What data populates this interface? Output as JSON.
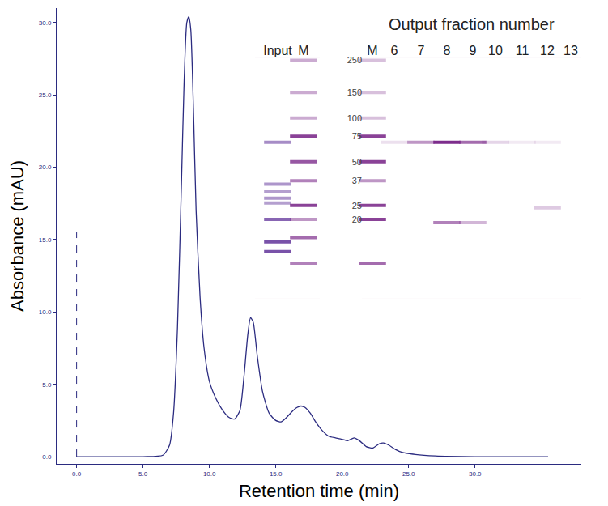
{
  "chart_data": {
    "type": "line",
    "x_label": "Retention time (min)",
    "y_label": "Absorbance (mAU)",
    "color": "#2b2b80",
    "grid": false,
    "xlim": [
      -1.5,
      38
    ],
    "ylim": [
      -0.5,
      31
    ],
    "xticks": [
      {
        "value": 0,
        "label": "0.0"
      },
      {
        "value": 5,
        "label": "5.0"
      },
      {
        "value": 10,
        "label": "10.0"
      },
      {
        "value": 15,
        "label": "15.0"
      },
      {
        "value": 20,
        "label": "20.0"
      },
      {
        "value": 25,
        "label": "25.0"
      },
      {
        "value": 30,
        "label": "30.0"
      }
    ],
    "yticks": [
      {
        "value": 0,
        "label": "0.0"
      },
      {
        "value": 5,
        "label": "5.0"
      },
      {
        "value": 10,
        "label": "10.0"
      },
      {
        "value": 15,
        "label": "15.0"
      },
      {
        "value": 20,
        "label": "20.0"
      },
      {
        "value": 25,
        "label": "25.0"
      },
      {
        "value": 30,
        "label": "30.0"
      }
    ],
    "x": [
      0,
      5,
      6.5,
      7.0,
      7.3,
      7.6,
      7.9,
      8.1,
      8.3,
      8.45,
      8.6,
      8.8,
      9.0,
      9.3,
      9.6,
      10.0,
      10.5,
      11.0,
      11.5,
      11.9,
      12.3,
      12.6,
      12.9,
      13.1,
      13.3,
      13.6,
      14.0,
      14.5,
      15.0,
      15.4,
      15.8,
      16.2,
      16.6,
      16.9,
      17.2,
      17.6,
      18.0,
      18.5,
      19.0,
      19.5,
      20.0,
      20.4,
      20.9,
      21.3,
      21.8,
      22.3,
      22.8,
      23.1,
      23.5,
      24.0,
      24.5,
      25.5,
      27,
      30,
      35.5
    ],
    "values": [
      0,
      0,
      0.1,
      0.8,
      3,
      9,
      19,
      26,
      30,
      30.4,
      29.5,
      24,
      17,
      11,
      7.5,
      5.2,
      4.0,
      3.2,
      2.7,
      2.6,
      3.2,
      5.5,
      8.5,
      9.6,
      9.3,
      7,
      4.5,
      3.0,
      2.5,
      2.4,
      2.7,
      3.1,
      3.4,
      3.5,
      3.4,
      3.0,
      2.4,
      1.8,
      1.4,
      1.3,
      1.2,
      1.1,
      1.3,
      1.1,
      0.7,
      0.6,
      0.9,
      0.95,
      0.8,
      0.5,
      0.3,
      0.15,
      0.05,
      0,
      0
    ],
    "injection": {
      "x": 0,
      "y": [
        0,
        15.5
      ]
    }
  },
  "inset_gel": {
    "title": "Output fraction number",
    "ylim": [
      5.7,
      259
    ],
    "ladder_ticks": [
      250,
      150,
      100,
      75,
      50,
      37,
      25,
      20
    ],
    "lanes": [
      {
        "label": "Input",
        "bands": [
          {
            "kDa": 68,
            "intensity": 0.6
          },
          {
            "kDa": 35,
            "intensity": 0.55
          },
          {
            "kDa": 31,
            "intensity": 0.5
          },
          {
            "kDa": 28,
            "intensity": 0.55
          },
          {
            "kDa": 26,
            "intensity": 0.5
          },
          {
            "kDa": 20,
            "intensity": 0.8
          },
          {
            "kDa": 14,
            "intensity": 0.9
          },
          {
            "kDa": 12,
            "intensity": 0.9
          }
        ]
      },
      {
        "label": "M",
        "bands": [
          {
            "kDa": 250,
            "intensity": 0.4
          },
          {
            "kDa": 150,
            "intensity": 0.4
          },
          {
            "kDa": 100,
            "intensity": 0.4
          },
          {
            "kDa": 75,
            "intensity": 0.9
          },
          {
            "kDa": 50,
            "intensity": 0.8
          },
          {
            "kDa": 37,
            "intensity": 0.6
          },
          {
            "kDa": 25,
            "intensity": 0.9
          },
          {
            "kDa": 20,
            "intensity": 0.5
          },
          {
            "kDa": 15,
            "intensity": 0.7
          },
          {
            "kDa": 10,
            "intensity": 0.6
          }
        ]
      },
      {
        "label": "M",
        "bands": [
          {
            "kDa": 250,
            "intensity": 0.3
          },
          {
            "kDa": 150,
            "intensity": 0.3
          },
          {
            "kDa": 100,
            "intensity": 0.3
          },
          {
            "kDa": 75,
            "intensity": 0.9
          },
          {
            "kDa": 50,
            "intensity": 0.9
          },
          {
            "kDa": 37,
            "intensity": 0.5
          },
          {
            "kDa": 25,
            "intensity": 0.9
          },
          {
            "kDa": 20,
            "intensity": 0.9
          },
          {
            "kDa": 10,
            "intensity": 0.7
          }
        ]
      },
      {
        "label": "6",
        "bands": [
          {
            "kDa": 68,
            "intensity": 0.15
          }
        ]
      },
      {
        "label": "7",
        "bands": [
          {
            "kDa": 68,
            "intensity": 0.5
          }
        ]
      },
      {
        "label": "8",
        "bands": [
          {
            "kDa": 68,
            "intensity": 1.0
          },
          {
            "kDa": 19,
            "intensity": 0.6
          }
        ]
      },
      {
        "label": "9",
        "bands": [
          {
            "kDa": 68,
            "intensity": 0.7
          },
          {
            "kDa": 19,
            "intensity": 0.35
          }
        ]
      },
      {
        "label": "10",
        "bands": [
          {
            "kDa": 68,
            "intensity": 0.2
          }
        ]
      },
      {
        "label": "11",
        "bands": [
          {
            "kDa": 68,
            "intensity": 0.1
          }
        ]
      },
      {
        "label": "12",
        "bands": [
          {
            "kDa": 68,
            "intensity": 0.1
          },
          {
            "kDa": 24,
            "intensity": 0.25
          }
        ]
      },
      {
        "label": "13",
        "bands": []
      }
    ]
  }
}
